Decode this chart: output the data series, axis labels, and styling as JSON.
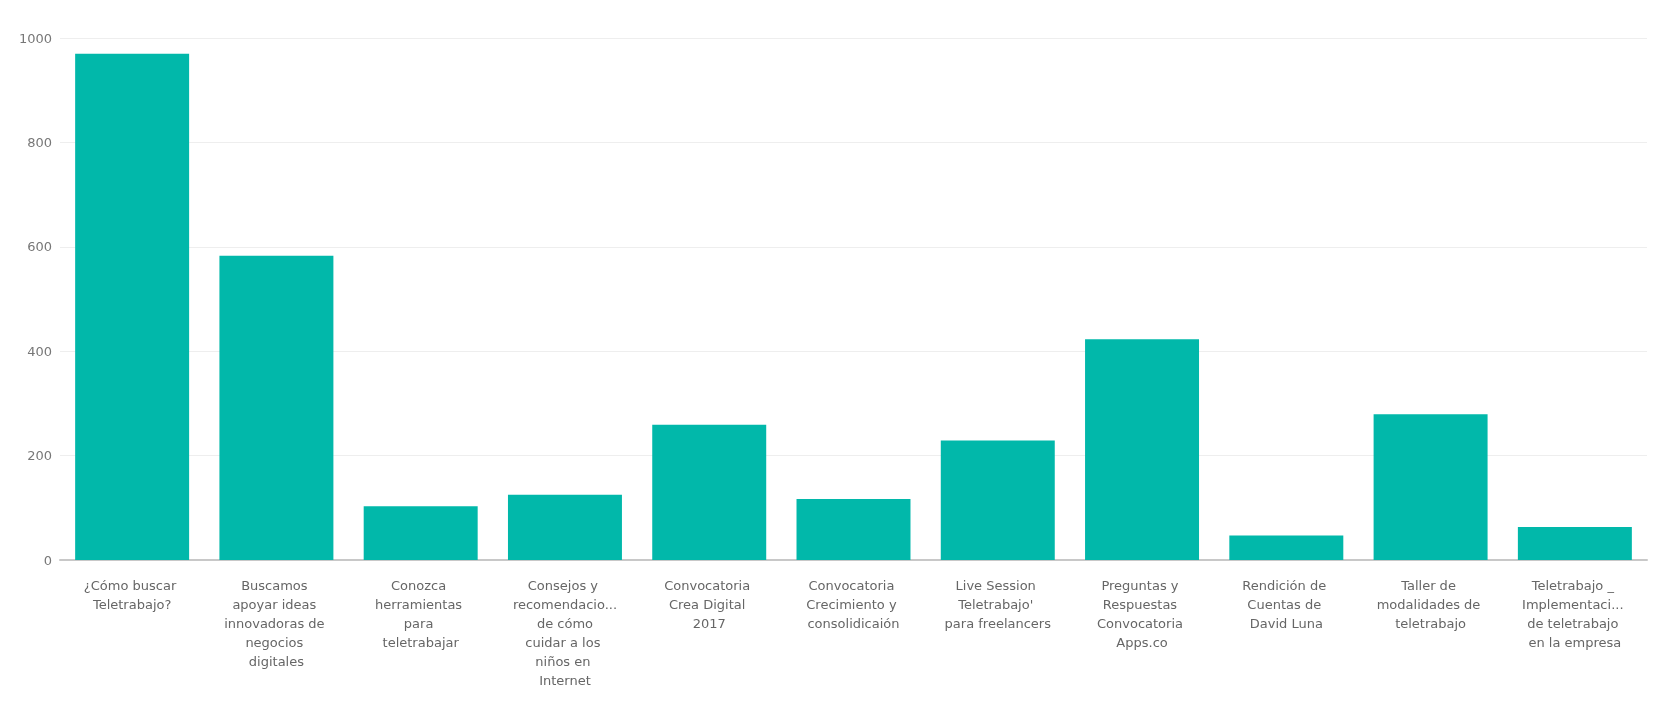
{
  "chart_data": {
    "type": "bar",
    "categories": [
      "¿Cómo buscar Teletrabajo?",
      "Buscamos apoyar ideas innovadoras de negocios digitales",
      "Conozca herramientas para teletrabajar",
      "Consejos y recomendacio... de cómo cuidar a los niños en Internet",
      "Convocatoria Crea Digital 2017",
      "Convocatoria Crecimiento y consolidicaión",
      "Live Session Teletrabajo' para freelancers",
      "Preguntas y Respuestas Convocatoria Apps.co",
      "Rendición de Cuentas de David Luna",
      "Taller de modalidades de teletrabajo",
      "Teletrabajo _ Implementaci... de teletrabajo en la empresa"
    ],
    "values": [
      970,
      583,
      103,
      125,
      259,
      117,
      229,
      423,
      47,
      279,
      63
    ],
    "color": "#01b8aa",
    "ylim": [
      0,
      1000
    ],
    "yticks": [
      0,
      200,
      400,
      600,
      800,
      1000
    ],
    "grid": "y"
  }
}
